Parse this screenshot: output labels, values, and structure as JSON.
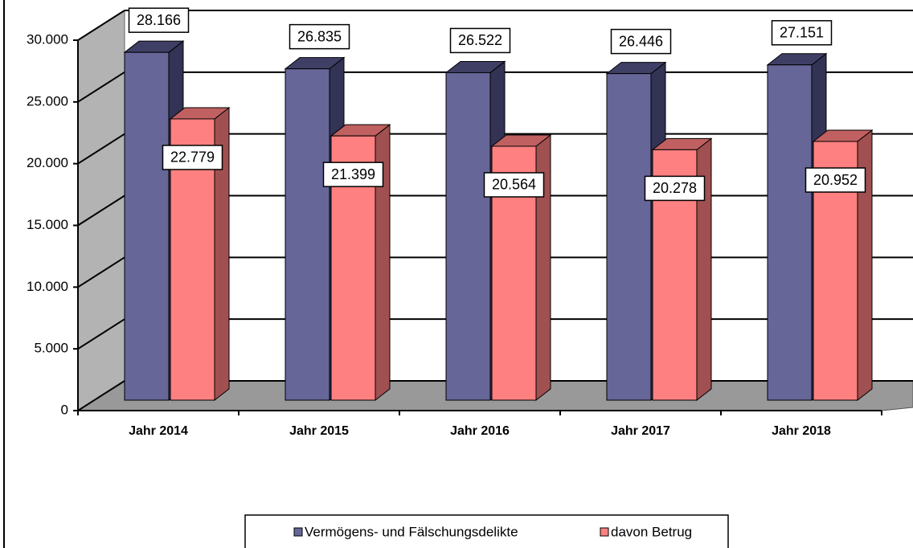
{
  "chart_data": {
    "type": "bar3d",
    "categories": [
      "Jahr 2014",
      "Jahr 2015",
      "Jahr 2016",
      "Jahr 2017",
      "Jahr 2018"
    ],
    "series": [
      {
        "name": "Vermögens- und Fälschungsdelikte",
        "color": "#666699",
        "values": [
          28166,
          26835,
          26522,
          26446,
          27151
        ],
        "value_labels": [
          "28.166",
          "26.835",
          "26.522",
          "26.446",
          "27.151"
        ]
      },
      {
        "name": "davon Betrug",
        "color": "#ff8080",
        "values": [
          22779,
          21399,
          20564,
          20278,
          20952
        ],
        "value_labels": [
          "22.779",
          "21.399",
          "20.564",
          "20.278",
          "20.952"
        ]
      }
    ],
    "ylim": [
      0,
      30000
    ],
    "yticks": [
      0,
      {
        "value": 5000,
        "label": "5.000"
      },
      {
        "value": 10000,
        "label": "10.000"
      },
      {
        "value": 15000,
        "label": "15.000"
      },
      {
        "value": 20000,
        "label": "20.000"
      },
      {
        "value": 25000,
        "label": "25.000"
      },
      {
        "value": 30000,
        "label": "30.000"
      }
    ],
    "grid": true,
    "legend": "bottom"
  }
}
